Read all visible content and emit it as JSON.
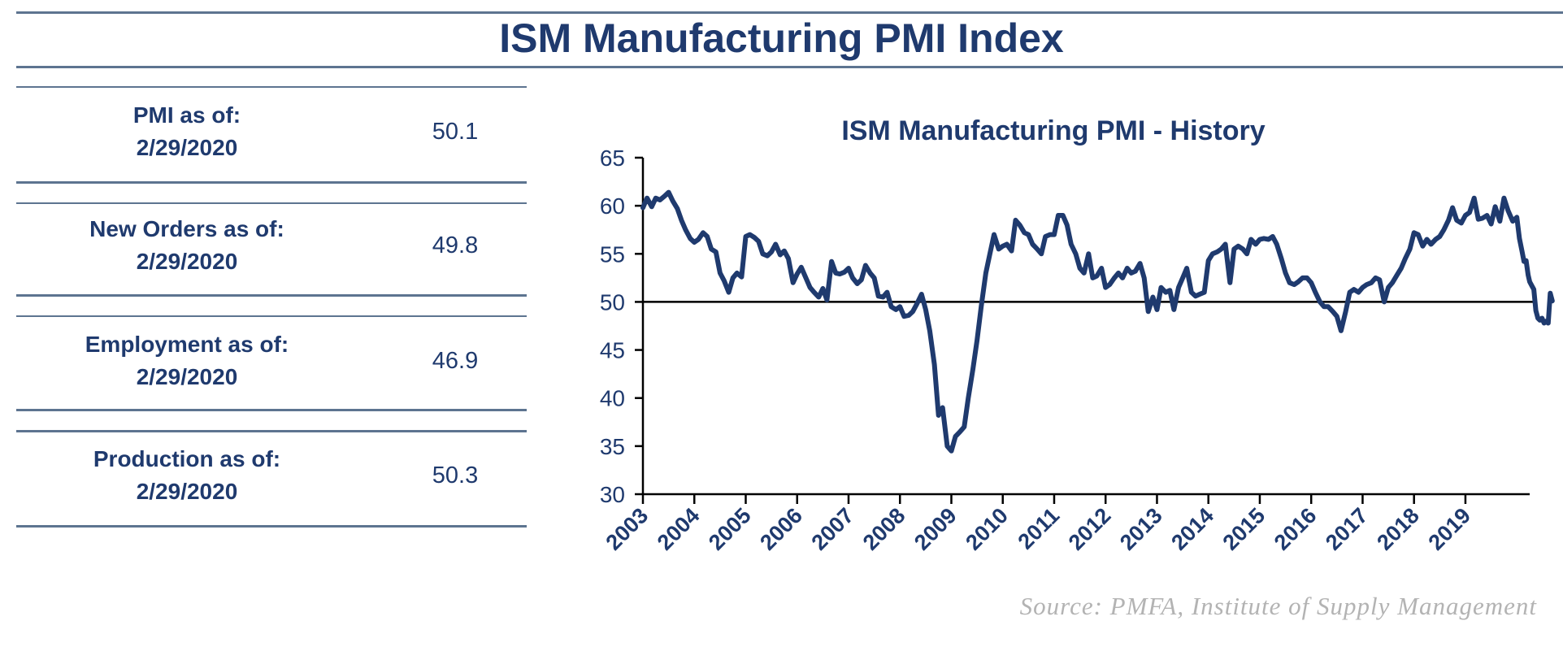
{
  "header": {
    "title": "ISM Manufacturing PMI Index"
  },
  "stats": [
    {
      "label_line1": "PMI as of:",
      "label_line2": "2/29/2020",
      "value": "50.1"
    },
    {
      "label_line1": "New Orders as of:",
      "label_line2": "2/29/2020",
      "value": "49.8"
    },
    {
      "label_line1": "Employment as of:",
      "label_line2": "2/29/2020",
      "value": "46.9"
    },
    {
      "label_line1": "Production as of:",
      "label_line2": "2/29/2020",
      "value": "50.3"
    }
  ],
  "source": "Source:  PMFA,  Institute  of Supply Management",
  "colors": {
    "primary": "#1f3a6e",
    "rule": "#5d7490",
    "source_text": "#b3b3b3",
    "reference_line": "#000000"
  },
  "chart_data": {
    "type": "line",
    "title": "ISM Manufacturing PMI - History",
    "xlabel": "",
    "ylabel": "",
    "ylim": [
      30,
      65
    ],
    "yticks": [
      30,
      35,
      40,
      45,
      50,
      55,
      60,
      65
    ],
    "xticks": [
      "2003",
      "2004",
      "2005",
      "2006",
      "2007",
      "2008",
      "2009",
      "2010",
      "2011",
      "2012",
      "2013",
      "2014",
      "2015",
      "2016",
      "2017",
      "2018",
      "2019"
    ],
    "xlim": [
      2003,
      2020.25
    ],
    "reference_line": 50,
    "grid": false,
    "legend": "none",
    "series": [
      {
        "color": "#1f3a6e",
        "points": [
          [
            2003.0,
            59.8
          ],
          [
            2003.08,
            60.8
          ],
          [
            2003.17,
            59.9
          ],
          [
            2003.25,
            60.8
          ],
          [
            2003.33,
            60.6
          ],
          [
            2003.42,
            61.0
          ],
          [
            2003.5,
            61.4
          ],
          [
            2003.58,
            60.5
          ],
          [
            2003.67,
            59.7
          ],
          [
            2003.75,
            58.5
          ],
          [
            2003.83,
            57.5
          ],
          [
            2003.92,
            56.6
          ],
          [
            2004.0,
            56.2
          ],
          [
            2004.08,
            56.5
          ],
          [
            2004.17,
            57.2
          ],
          [
            2004.25,
            56.8
          ],
          [
            2004.33,
            55.5
          ],
          [
            2004.42,
            55.2
          ],
          [
            2004.5,
            53.0
          ],
          [
            2004.58,
            52.2
          ],
          [
            2004.67,
            51.0
          ],
          [
            2004.75,
            52.5
          ],
          [
            2004.83,
            53.0
          ],
          [
            2004.92,
            52.6
          ],
          [
            2005.0,
            56.8
          ],
          [
            2005.08,
            57.0
          ],
          [
            2005.17,
            56.7
          ],
          [
            2005.25,
            56.3
          ],
          [
            2005.33,
            55.0
          ],
          [
            2005.42,
            54.8
          ],
          [
            2005.5,
            55.2
          ],
          [
            2005.58,
            56.0
          ],
          [
            2005.67,
            54.9
          ],
          [
            2005.75,
            55.3
          ],
          [
            2005.83,
            54.5
          ],
          [
            2005.92,
            52.0
          ],
          [
            2006.0,
            52.9
          ],
          [
            2006.08,
            53.6
          ],
          [
            2006.17,
            52.5
          ],
          [
            2006.25,
            51.5
          ],
          [
            2006.33,
            51.0
          ],
          [
            2006.42,
            50.5
          ],
          [
            2006.5,
            51.4
          ],
          [
            2006.58,
            50.2
          ],
          [
            2006.67,
            54.2
          ],
          [
            2006.75,
            53.0
          ],
          [
            2006.83,
            52.9
          ],
          [
            2006.92,
            53.1
          ],
          [
            2007.0,
            53.5
          ],
          [
            2007.08,
            52.5
          ],
          [
            2007.17,
            51.9
          ],
          [
            2007.25,
            52.3
          ],
          [
            2007.33,
            53.8
          ],
          [
            2007.42,
            53.0
          ],
          [
            2007.5,
            52.5
          ],
          [
            2007.58,
            50.6
          ],
          [
            2007.67,
            50.5
          ],
          [
            2007.75,
            51.0
          ],
          [
            2007.83,
            49.5
          ],
          [
            2007.92,
            49.2
          ],
          [
            2008.0,
            49.5
          ],
          [
            2008.08,
            48.5
          ],
          [
            2008.17,
            48.6
          ],
          [
            2008.25,
            49.0
          ],
          [
            2008.33,
            49.8
          ],
          [
            2008.42,
            50.8
          ],
          [
            2008.5,
            49.2
          ],
          [
            2008.58,
            47.0
          ],
          [
            2008.67,
            43.5
          ],
          [
            2008.75,
            38.2
          ],
          [
            2008.83,
            39.0
          ],
          [
            2008.92,
            35.0
          ],
          [
            2009.0,
            34.5
          ],
          [
            2009.08,
            36.0
          ],
          [
            2009.17,
            36.5
          ],
          [
            2009.25,
            37.0
          ],
          [
            2009.33,
            40.0
          ],
          [
            2009.42,
            43.0
          ],
          [
            2009.5,
            46.0
          ],
          [
            2009.58,
            49.5
          ],
          [
            2009.67,
            53.0
          ],
          [
            2009.75,
            55.0
          ],
          [
            2009.83,
            57.0
          ],
          [
            2009.92,
            55.5
          ],
          [
            2010.0,
            55.8
          ],
          [
            2010.08,
            56.0
          ],
          [
            2010.17,
            55.3
          ],
          [
            2010.25,
            58.5
          ],
          [
            2010.33,
            58.0
          ],
          [
            2010.42,
            57.2
          ],
          [
            2010.5,
            57.0
          ],
          [
            2010.58,
            56.0
          ],
          [
            2010.67,
            55.5
          ],
          [
            2010.75,
            55.0
          ],
          [
            2010.83,
            56.8
          ],
          [
            2010.92,
            57.0
          ],
          [
            2011.0,
            57.0
          ],
          [
            2011.08,
            59.0
          ],
          [
            2011.17,
            59.0
          ],
          [
            2011.25,
            58.0
          ],
          [
            2011.33,
            56.0
          ],
          [
            2011.42,
            55.0
          ],
          [
            2011.5,
            53.5
          ],
          [
            2011.58,
            53.0
          ],
          [
            2011.67,
            55.0
          ],
          [
            2011.75,
            52.5
          ],
          [
            2011.83,
            52.7
          ],
          [
            2011.92,
            53.5
          ],
          [
            2012.0,
            51.5
          ],
          [
            2012.08,
            51.8
          ],
          [
            2012.17,
            52.5
          ],
          [
            2012.25,
            53.0
          ],
          [
            2012.33,
            52.5
          ],
          [
            2012.42,
            53.5
          ],
          [
            2012.5,
            53.0
          ],
          [
            2012.58,
            53.2
          ],
          [
            2012.67,
            54.0
          ],
          [
            2012.75,
            52.5
          ],
          [
            2012.83,
            49.0
          ],
          [
            2012.92,
            50.5
          ],
          [
            2013.0,
            49.2
          ],
          [
            2013.08,
            51.5
          ],
          [
            2013.17,
            51.0
          ],
          [
            2013.25,
            51.2
          ],
          [
            2013.33,
            49.2
          ],
          [
            2013.42,
            51.5
          ],
          [
            2013.5,
            52.5
          ],
          [
            2013.58,
            53.5
          ],
          [
            2013.67,
            51.0
          ],
          [
            2013.75,
            50.6
          ],
          [
            2013.83,
            50.8
          ],
          [
            2013.92,
            51.0
          ],
          [
            2014.0,
            54.3
          ],
          [
            2014.08,
            55.0
          ],
          [
            2014.17,
            55.2
          ],
          [
            2014.25,
            55.5
          ],
          [
            2014.33,
            56.0
          ],
          [
            2014.42,
            52.0
          ],
          [
            2014.5,
            55.5
          ],
          [
            2014.58,
            55.8
          ],
          [
            2014.67,
            55.5
          ],
          [
            2014.75,
            55.0
          ],
          [
            2014.83,
            56.5
          ],
          [
            2014.92,
            56.0
          ],
          [
            2015.0,
            56.5
          ],
          [
            2015.08,
            56.6
          ],
          [
            2015.17,
            56.5
          ],
          [
            2015.25,
            56.8
          ],
          [
            2015.33,
            56.0
          ],
          [
            2015.42,
            54.5
          ],
          [
            2015.5,
            53.0
          ],
          [
            2015.58,
            52.0
          ],
          [
            2015.67,
            51.8
          ],
          [
            2015.75,
            52.1
          ],
          [
            2015.83,
            52.5
          ],
          [
            2015.92,
            52.5
          ],
          [
            2016.0,
            52.0
          ],
          [
            2016.08,
            51.0
          ],
          [
            2016.17,
            50.0
          ],
          [
            2016.25,
            49.5
          ],
          [
            2016.33,
            49.5
          ],
          [
            2016.42,
            49.0
          ],
          [
            2016.5,
            48.5
          ],
          [
            2016.58,
            47.0
          ],
          [
            2016.67,
            49.0
          ],
          [
            2016.75,
            51.0
          ],
          [
            2016.83,
            51.3
          ],
          [
            2016.92,
            51.0
          ],
          [
            2017.0,
            51.5
          ],
          [
            2017.08,
            51.8
          ],
          [
            2017.17,
            52.0
          ],
          [
            2017.25,
            52.5
          ],
          [
            2017.33,
            52.3
          ],
          [
            2017.42,
            50.0
          ],
          [
            2017.5,
            51.5
          ],
          [
            2017.58,
            52.0
          ],
          [
            2017.67,
            52.8
          ],
          [
            2017.75,
            53.5
          ],
          [
            2017.83,
            54.5
          ],
          [
            2017.92,
            55.5
          ],
          [
            2018.0,
            57.2
          ],
          [
            2018.08,
            57.0
          ],
          [
            2018.17,
            55.8
          ],
          [
            2018.25,
            56.5
          ],
          [
            2018.33,
            56.0
          ],
          [
            2018.42,
            56.5
          ],
          [
            2018.5,
            56.8
          ],
          [
            2018.58,
            57.5
          ],
          [
            2018.67,
            58.5
          ],
          [
            2018.75,
            59.8
          ],
          [
            2018.83,
            58.5
          ],
          [
            2018.92,
            58.2
          ],
          [
            2019.0,
            59.0
          ],
          [
            2019.08,
            59.3
          ],
          [
            2019.17,
            60.8
          ],
          [
            2019.25,
            58.6
          ],
          [
            2019.33,
            58.7
          ],
          [
            2019.42,
            59.0
          ],
          [
            2019.5,
            58.1
          ],
          [
            2019.58,
            59.9
          ],
          [
            2019.67,
            58.4
          ],
          [
            2019.75,
            60.8
          ],
          [
            2019.83,
            59.5
          ],
          [
            2019.92,
            58.4
          ],
          [
            2020.0,
            58.8
          ],
          [
            2020.05,
            56.6
          ],
          [
            2020.1,
            55.3
          ],
          [
            2020.14,
            54.2
          ],
          [
            2020.18,
            54.3
          ],
          [
            2020.22,
            52.8
          ],
          [
            2020.25,
            52.1
          ],
          [
            2020.29,
            51.7
          ],
          [
            2020.33,
            51.3
          ],
          [
            2020.37,
            49.1
          ],
          [
            2020.41,
            48.3
          ],
          [
            2020.45,
            48.1
          ],
          [
            2020.49,
            48.3
          ],
          [
            2020.53,
            47.8
          ],
          [
            2020.57,
            48.0
          ],
          [
            2020.61,
            47.8
          ],
          [
            2020.65,
            50.9
          ],
          [
            2020.69,
            50.1
          ]
        ]
      }
    ]
  }
}
